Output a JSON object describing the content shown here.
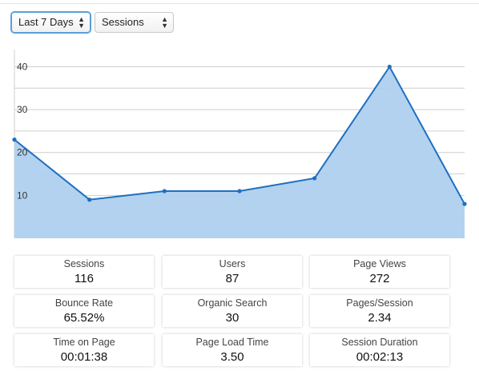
{
  "filters": {
    "range": {
      "value": "Last 7 Days"
    },
    "metric": {
      "value": "Sessions"
    }
  },
  "chart_data": {
    "type": "area",
    "x": [
      1,
      2,
      3,
      4,
      5,
      6,
      7
    ],
    "series": [
      {
        "values": [
          23,
          9,
          11,
          11,
          14,
          40,
          8
        ]
      }
    ],
    "yticks": [
      10,
      20,
      30,
      40
    ],
    "ylim": [
      0,
      44
    ],
    "grid": true,
    "colors": {
      "line": "#1f6fbf",
      "fill": "#afd0ee",
      "grid": "#cfcfcf"
    }
  },
  "stats": [
    {
      "label": "Sessions",
      "value": "116"
    },
    {
      "label": "Users",
      "value": "87"
    },
    {
      "label": "Page Views",
      "value": "272"
    },
    {
      "label": "Bounce Rate",
      "value": "65.52%"
    },
    {
      "label": "Organic Search",
      "value": "30"
    },
    {
      "label": "Pages/Session",
      "value": "2.34"
    },
    {
      "label": "Time on Page",
      "value": "00:01:38"
    },
    {
      "label": "Page Load Time",
      "value": "3.50"
    },
    {
      "label": "Session Duration",
      "value": "00:02:13"
    }
  ]
}
